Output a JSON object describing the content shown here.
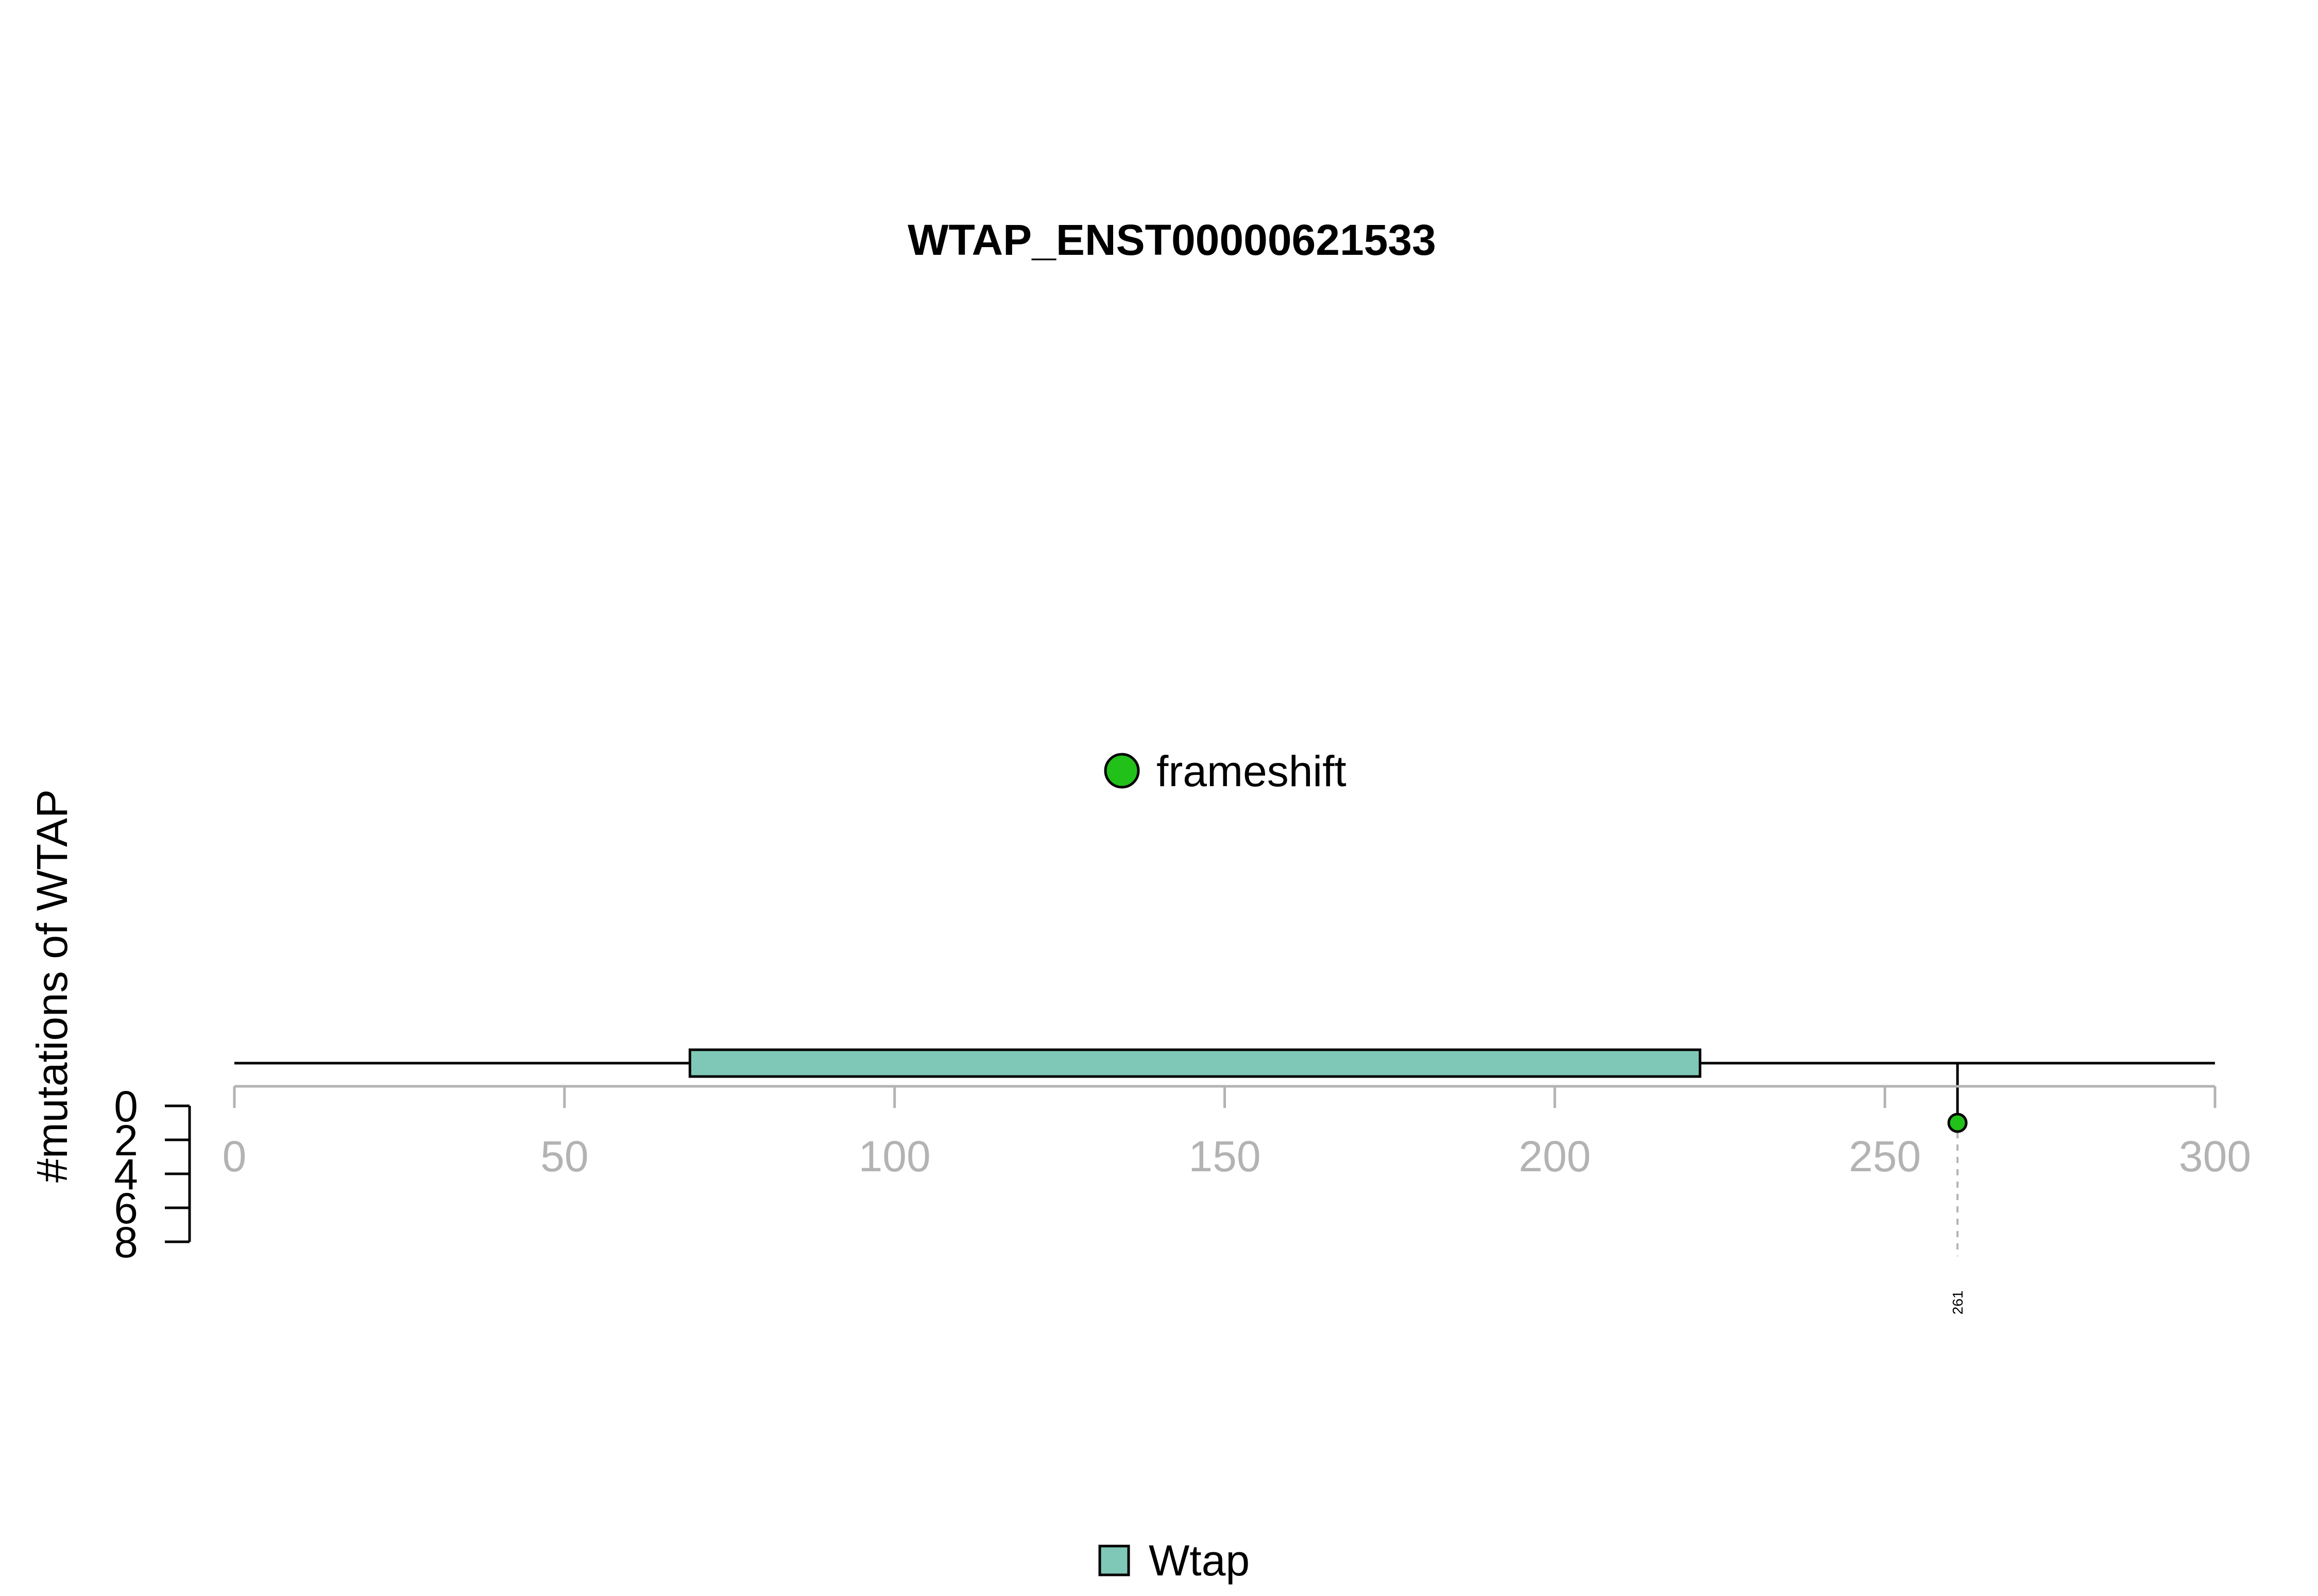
{
  "chart_data": {
    "type": "lollipop",
    "title": "WTAP_ENST00000621533",
    "ylabel": "#mutations of WTAP",
    "xlim": [
      0,
      300
    ],
    "x_ticks": [
      0,
      50,
      100,
      150,
      200,
      250,
      300
    ],
    "x_tick_labels": [
      "0",
      "50",
      "100",
      "150",
      "200",
      "250",
      "300"
    ],
    "ylim": [
      0,
      8
    ],
    "y_ticks": [
      0,
      2,
      4,
      6,
      8
    ],
    "y_tick_labels": [
      "0",
      "2",
      "4",
      "6",
      "8"
    ],
    "protein_length": 300,
    "domains": [
      {
        "name": "Wtap",
        "start": 69,
        "end": 222,
        "color": "#7fc8b8"
      }
    ],
    "mutation_types": [
      {
        "name": "frameshift",
        "color": "#22c11a"
      }
    ],
    "mutations": [
      {
        "position": 261,
        "count": 1,
        "type": "frameshift",
        "label": "261"
      }
    ],
    "legend": {
      "mutation_legend_placement": "center",
      "domain_legend_placement": "bottom-center"
    },
    "colors": {
      "axis": "#b3b3b3",
      "black": "#000000",
      "guide": "#b3b3b3"
    }
  }
}
